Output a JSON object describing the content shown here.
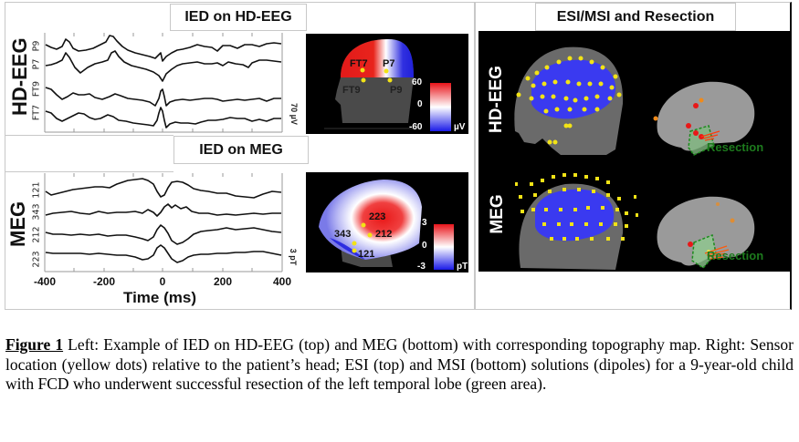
{
  "left_panel": {
    "eeg_title": "IED on HD-EEG",
    "meg_title": "IED on MEG",
    "eeg_row_label": "HD-EEG",
    "meg_row_label": "MEG",
    "eeg_channels": [
      "P9",
      "P7",
      "FT9",
      "FT7"
    ],
    "meg_channels": [
      "121",
      "343",
      "212",
      "223"
    ],
    "eeg_scale": "70 µV",
    "meg_scale": "3 pT",
    "x_ticks": [
      "-400",
      "-200",
      "0",
      "200",
      "400"
    ],
    "x_label": "Time (ms)"
  },
  "eeg_topomap": {
    "electrodes": [
      "FT7",
      "P7",
      "FT9",
      "P9"
    ],
    "colorbar_ticks": [
      "60",
      "0",
      "-60"
    ],
    "unit": "µV",
    "colors": {
      "positive": "#e8141a",
      "zero": "#ffffff",
      "negative": "#1a1ae8"
    }
  },
  "meg_topomap": {
    "sensors": [
      "223",
      "212",
      "343",
      "121"
    ],
    "colorbar_ticks": [
      "3",
      "0",
      "-3"
    ],
    "unit": "pT"
  },
  "right_panel": {
    "title": "ESI/MSI and Resection",
    "eeg_row_label": "HD-EEG",
    "meg_row_label": "MEG",
    "resection_label_top": "Resection",
    "resection_label_bottom": "Resection"
  },
  "caption": {
    "figure_label": "Figure 1",
    "text": " Left: Example of IED on HD-EEG (top) and MEG (bottom) with corresponding topography map. Right: Sensor location (yellow dots) relative to the patient’s head; ESI (top) and MSI (bottom) solutions (dipoles) for a 9-year-old child with FCD who underwent successful resection of the left temporal lobe (green area)."
  }
}
